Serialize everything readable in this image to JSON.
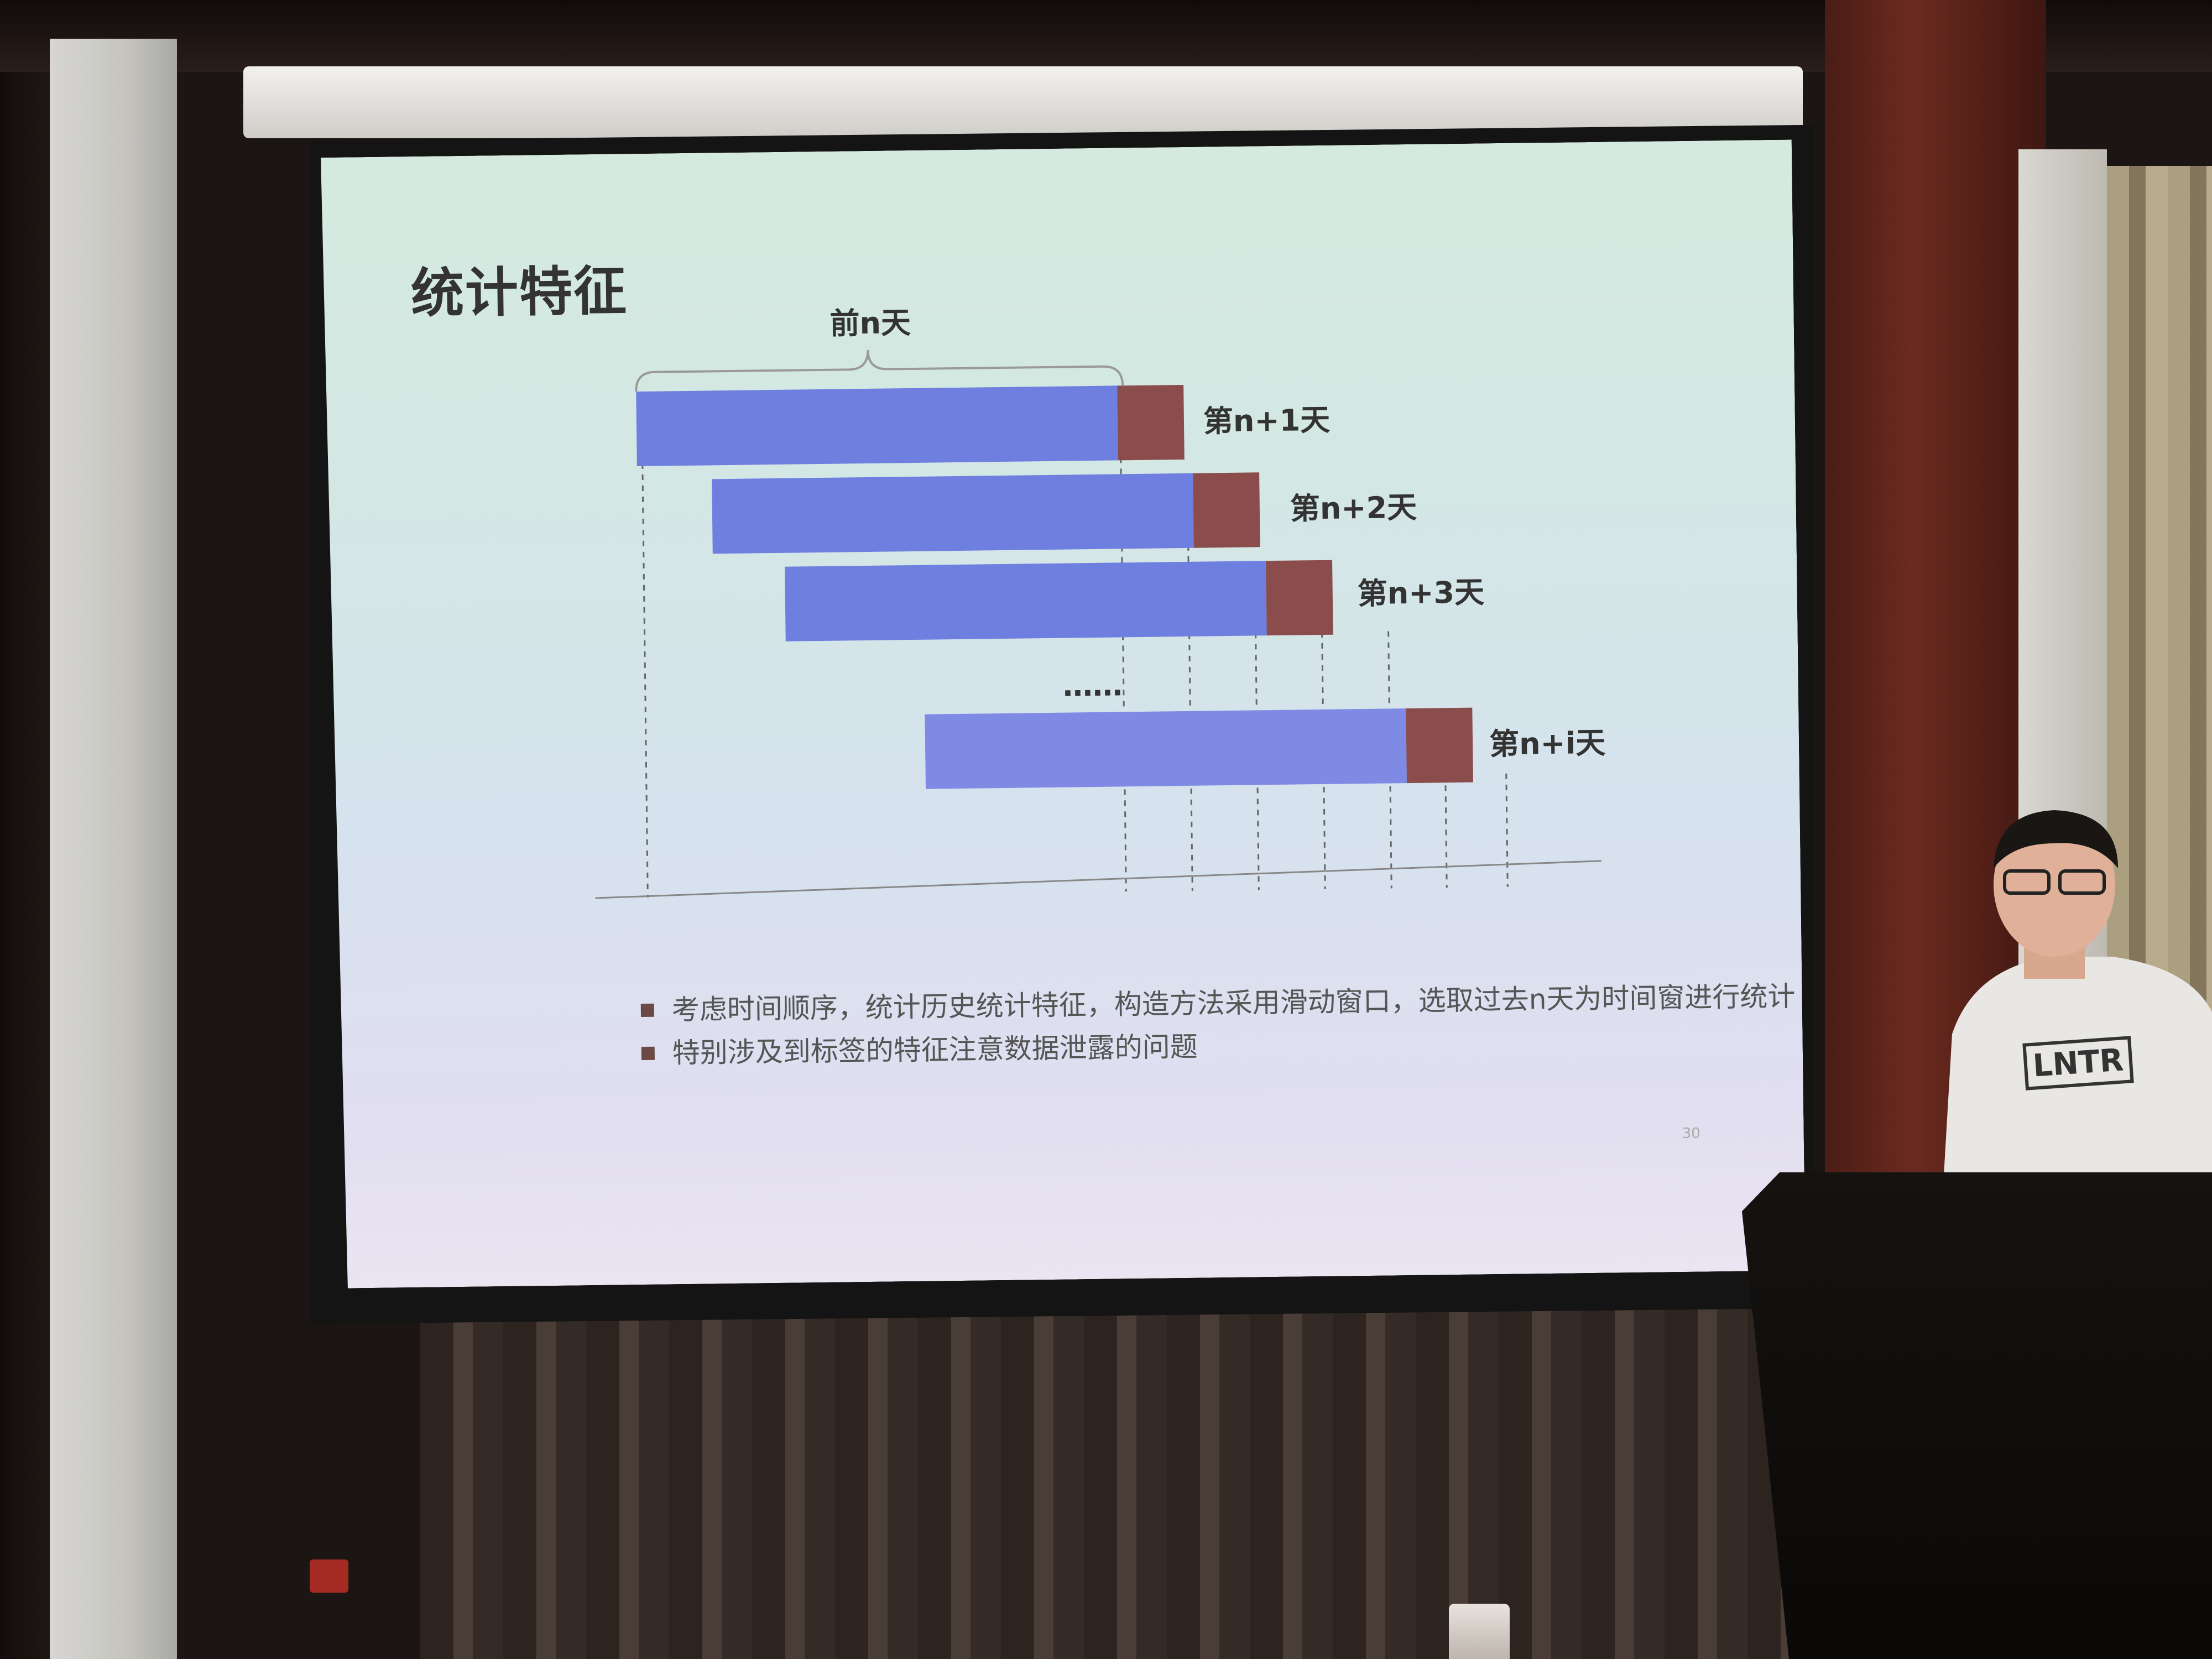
{
  "slide": {
    "title": "统计特征",
    "brace_label": "前n天",
    "bars": [
      {
        "label": "第n+1天"
      },
      {
        "label": "第n+2天"
      },
      {
        "label": "第n+3天"
      },
      {
        "label": "第n+i天"
      }
    ],
    "ellipsis": "……",
    "bullets": [
      "考虑时间顺序，统计历史统计特征，构造方法采用滑动窗口，选取过去n天为时间窗进行统计",
      "特别涉及到标签的特征注意数据泄露的问题"
    ],
    "page_number": "30",
    "colors": {
      "window_bar": "#6f7fe0",
      "target_day": "#8a4d4c"
    }
  },
  "presenter": {
    "shirt_text": "LNTR"
  }
}
